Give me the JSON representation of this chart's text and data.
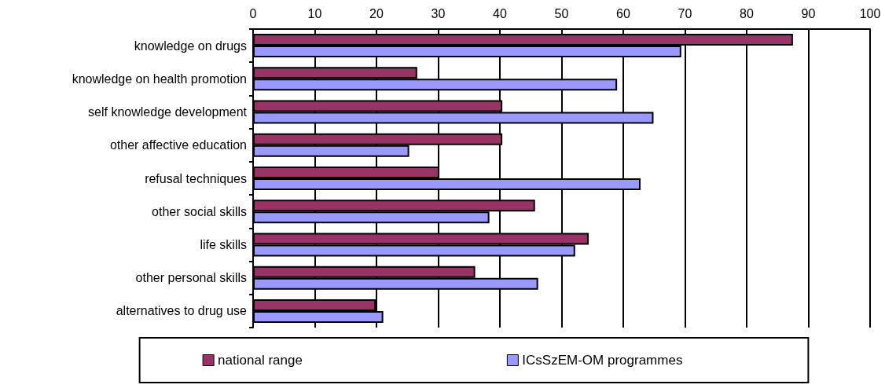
{
  "chart_data": {
    "type": "bar",
    "orientation": "horizontal",
    "categories": [
      "knowledge on drugs",
      "knowledge on health promotion",
      "self knowledge development",
      "other affective education",
      "refusal techniques",
      "other social skills",
      "life skills",
      "other personal skills",
      "alternatives to drug use"
    ],
    "series": [
      {
        "name": "national range",
        "color": "#993366",
        "values": [
          87.5,
          26.6,
          40.4,
          40.4,
          30.2,
          45.7,
          54.4,
          36.0,
          19.9
        ]
      },
      {
        "name": "ICsSzEM-OM programmes",
        "color": "#9999ff",
        "values": [
          69.4,
          59.0,
          64.9,
          25.3,
          62.8,
          38.3,
          52.2,
          46.2,
          21.1
        ]
      }
    ],
    "xlim": [
      0,
      100
    ],
    "xticks": [
      0,
      10,
      20,
      30,
      40,
      50,
      60,
      70,
      80,
      90,
      100
    ],
    "grid": "x",
    "legend": "bottom"
  }
}
